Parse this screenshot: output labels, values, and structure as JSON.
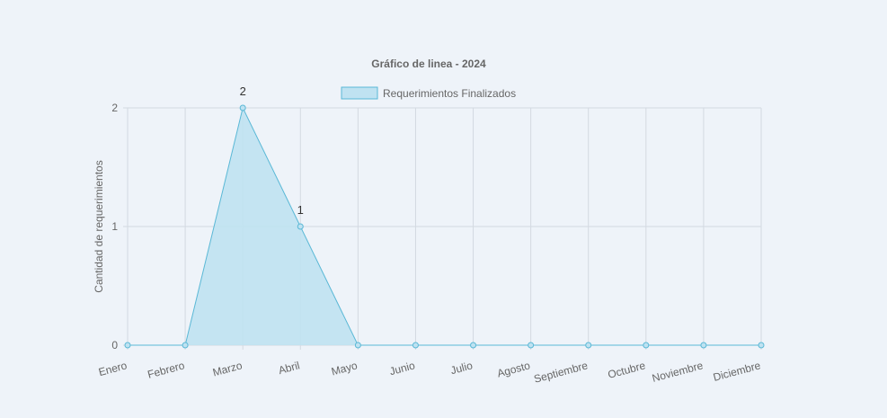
{
  "chart_data": {
    "type": "area",
    "title": "Gráfico de linea - 2024",
    "xlabel": "",
    "ylabel": "Cantidad de requerimientos",
    "categories": [
      "Enero",
      "Febrero",
      "Marzo",
      "Abril",
      "Mayo",
      "Junio",
      "Julio",
      "Agosto",
      "Septiembre",
      "Octubre",
      "Noviembre",
      "Diciembre"
    ],
    "series": [
      {
        "name": "Requerimientos Finalizados",
        "values": [
          0,
          0,
          2,
          1,
          0,
          0,
          0,
          0,
          0,
          0,
          0,
          0
        ]
      }
    ],
    "ylim": [
      0,
      2
    ],
    "yticks": [
      "0",
      "1",
      "2"
    ],
    "data_labels": [
      "",
      "",
      "2",
      "1",
      "",
      "",
      "",
      "",
      "",
      "",
      "",
      ""
    ],
    "grid": true,
    "legend_position": "top-center",
    "colors": {
      "line": "#5ab8d6",
      "fill": "#bfe2f1",
      "grid": "#d3d9e1",
      "text": "#666666"
    }
  }
}
